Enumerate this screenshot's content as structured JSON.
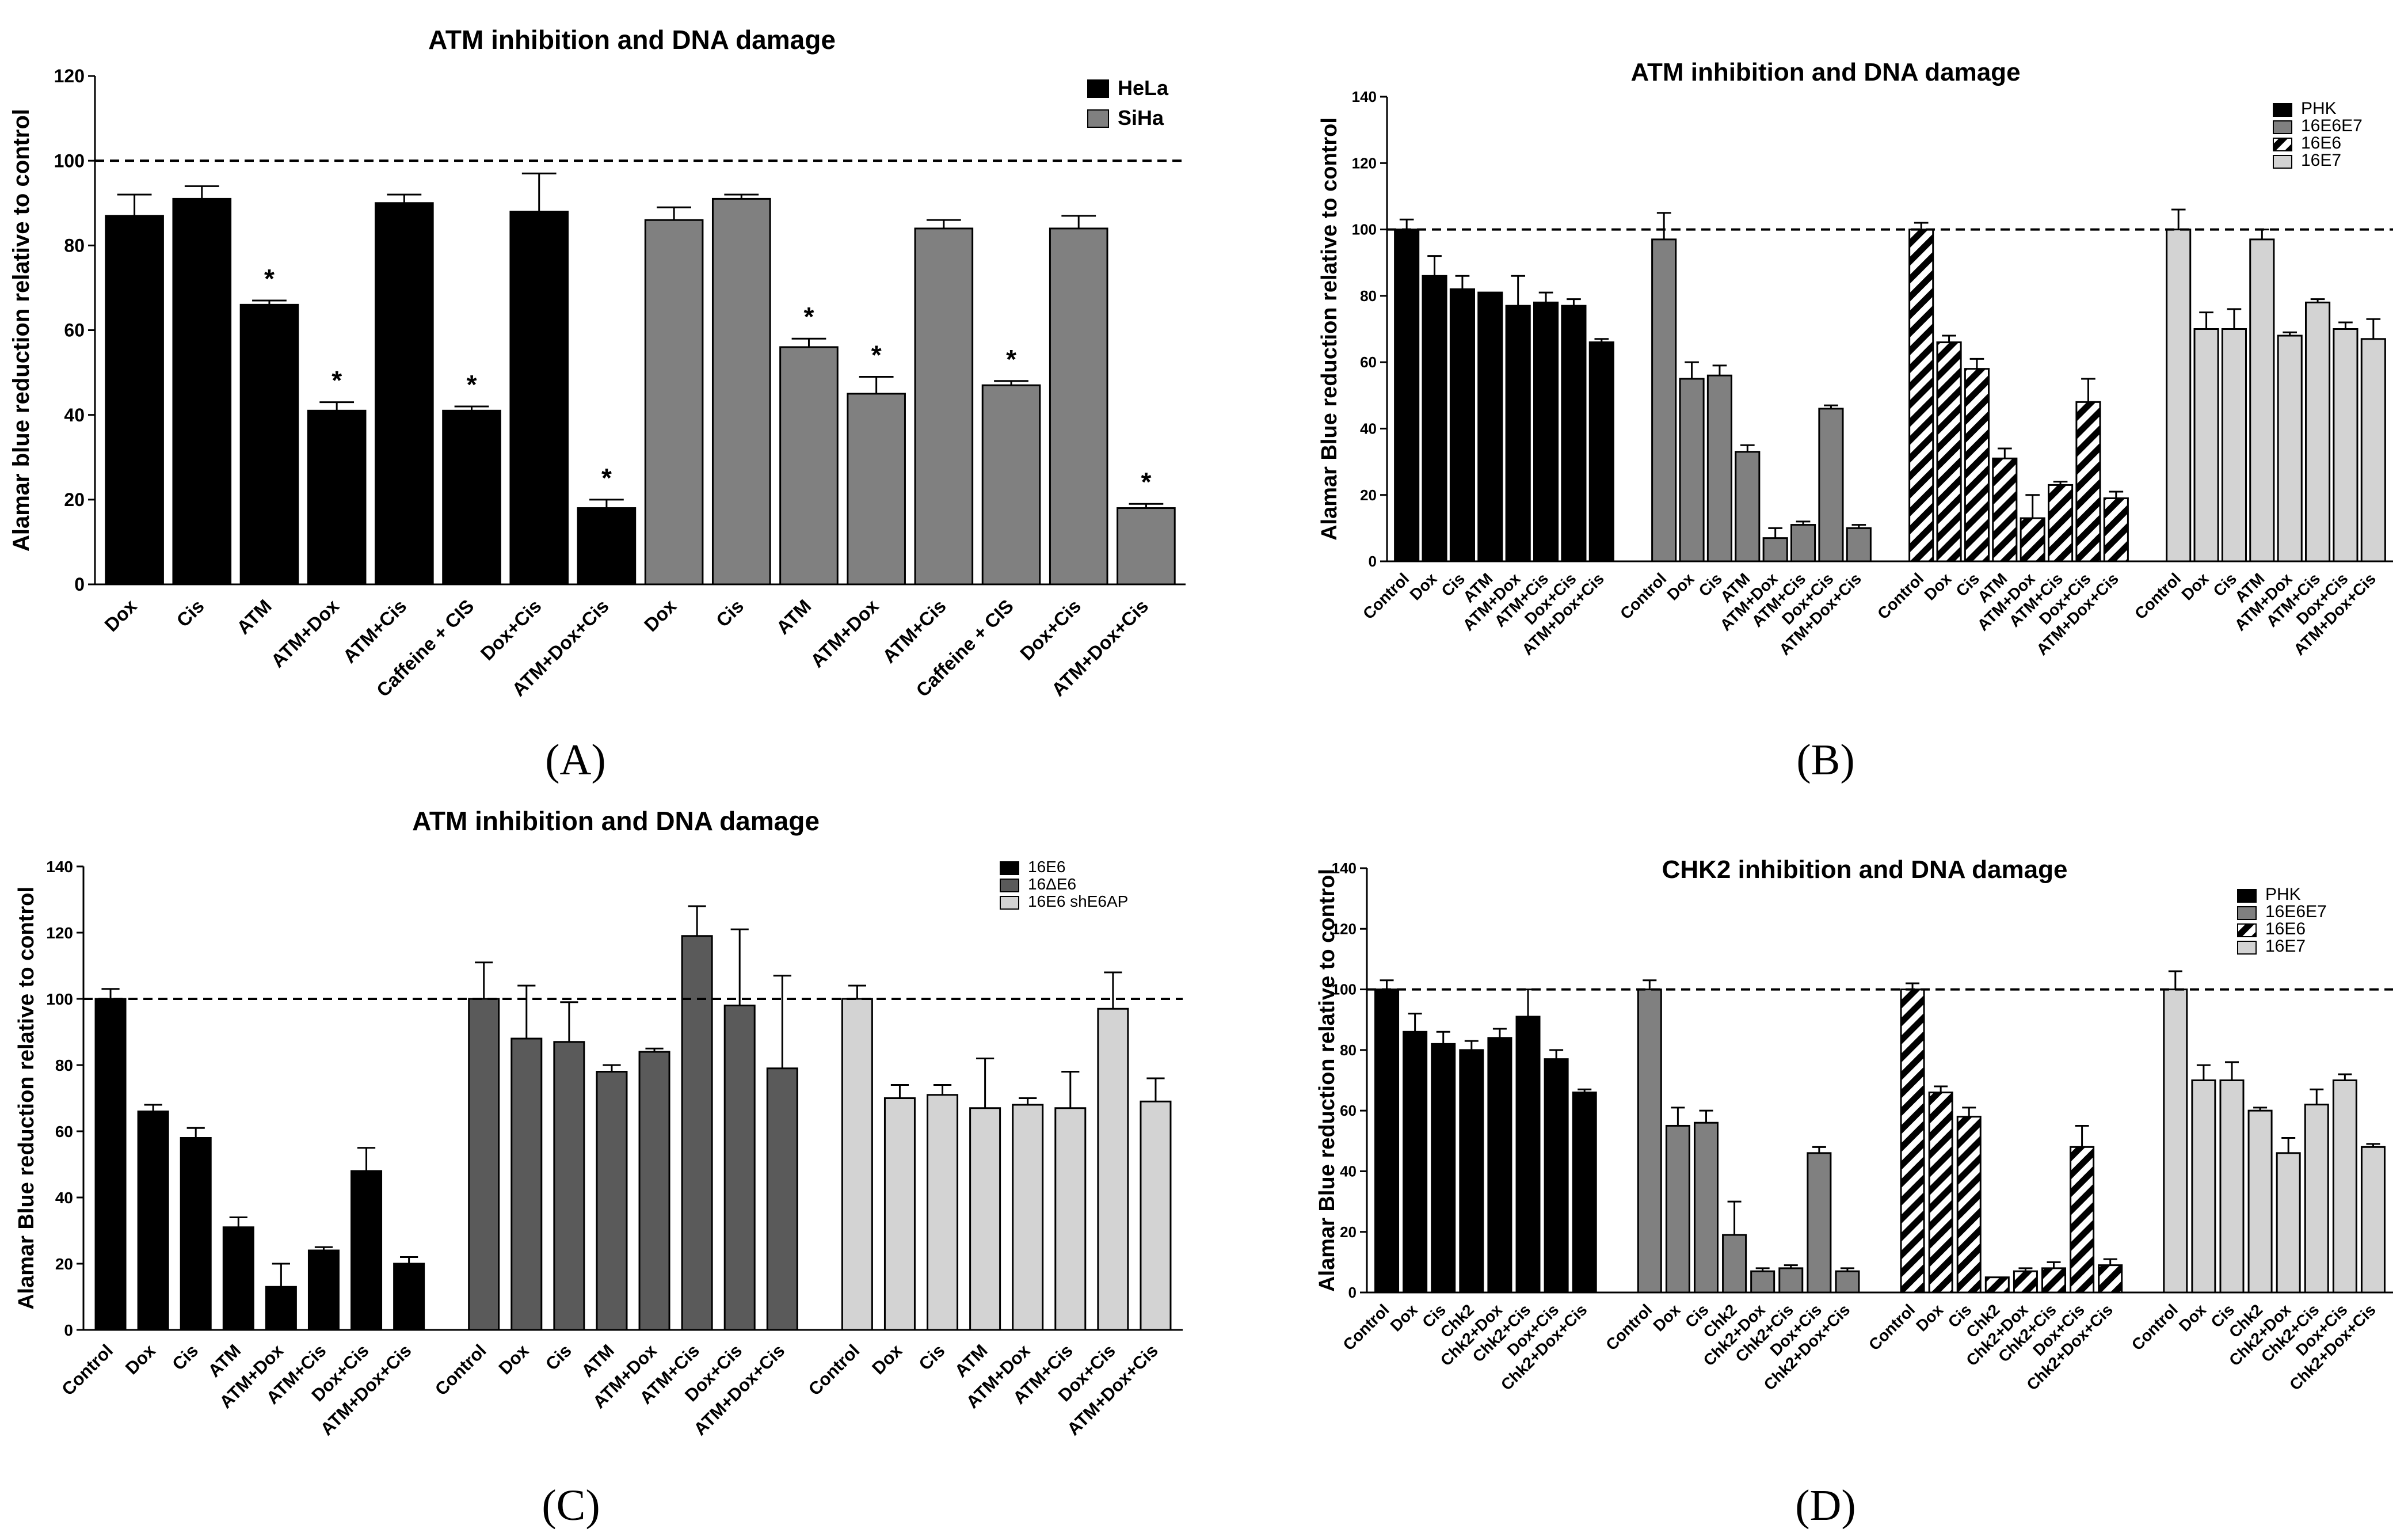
{
  "colors": {
    "black": "#000000",
    "dark_gray": "#808080",
    "mid_gray": "#5a5a5a",
    "light_gray": "#d3d3d3",
    "white": "#ffffff"
  },
  "chart_data": [
    {
      "panel": "(A)",
      "type": "bar",
      "title": "ATM inhibition and DNA damage",
      "ylabel": "Alamar blue reduction relative to control",
      "xlabel": "",
      "ylim": [
        0,
        120
      ],
      "yticks": [
        "0",
        "20",
        "40",
        "60",
        "80",
        "100",
        "120"
      ],
      "reference_line": 100,
      "legend": [
        {
          "label": "HeLa",
          "fill": "black"
        },
        {
          "label": "SiHa",
          "fill": "dark_gray"
        }
      ],
      "groups": [
        {
          "name": "HeLa",
          "fill": "black",
          "categories": [
            "Dox",
            "Cis",
            "ATM",
            "ATM+Dox",
            "ATM+Cis",
            "Caffeine + CIS",
            "Dox+Cis",
            "ATM+Dox+Cis"
          ],
          "values": [
            87,
            91,
            66,
            41,
            90,
            41,
            88,
            18
          ],
          "errors": [
            5,
            3,
            1,
            2,
            2,
            1,
            9,
            2
          ],
          "stars": [
            false,
            false,
            true,
            true,
            false,
            true,
            false,
            true
          ]
        },
        {
          "name": "SiHa",
          "fill": "dark_gray",
          "categories": [
            "Dox",
            "Cis",
            "ATM",
            "ATM+Dox",
            "ATM+Cis",
            "Caffeine + CIS",
            "Dox+Cis",
            "ATM+Dox+Cis"
          ],
          "values": [
            86,
            91,
            56,
            45,
            84,
            47,
            84,
            18
          ],
          "errors": [
            3,
            1,
            2,
            4,
            2,
            1,
            3,
            1
          ],
          "stars": [
            false,
            false,
            true,
            true,
            false,
            true,
            false,
            true
          ]
        }
      ],
      "star_symbol": "*"
    },
    {
      "panel": "(B)",
      "type": "bar",
      "title": "ATM inhibition and DNA damage",
      "ylabel": "Alamar Blue reduction relative to control",
      "xlabel": "",
      "ylim": [
        0,
        140
      ],
      "yticks": [
        "0",
        "20",
        "40",
        "60",
        "80",
        "100",
        "120",
        "140"
      ],
      "reference_line": 100,
      "legend": [
        {
          "label": "PHK",
          "fill": "black"
        },
        {
          "label": "16E6E7",
          "fill": "dark_gray"
        },
        {
          "label": "16E6",
          "fill": "hatch"
        },
        {
          "label": "16E7",
          "fill": "light_gray"
        }
      ],
      "groups": [
        {
          "name": "PHK",
          "fill": "black",
          "categories": [
            "Control",
            "Dox",
            "Cis",
            "ATM",
            "ATM+Dox",
            "ATM+Cis",
            "Dox+Cis",
            "ATM+Dox+Cis"
          ],
          "values": [
            100,
            86,
            82,
            81,
            77,
            78,
            77,
            66
          ],
          "errors": [
            3,
            6,
            4,
            0,
            9,
            3,
            2,
            1
          ]
        },
        {
          "name": "16E6E7",
          "fill": "dark_gray",
          "categories": [
            "Control",
            "Dox",
            "Cis",
            "ATM",
            "ATM+Dox",
            "ATM+Cis",
            "Dox+Cis",
            "ATM+Dox+Cis"
          ],
          "values": [
            97,
            55,
            56,
            33,
            7,
            11,
            46,
            10
          ],
          "errors": [
            8,
            5,
            3,
            2,
            3,
            1,
            1,
            1
          ]
        },
        {
          "name": "16E6",
          "fill": "hatch",
          "categories": [
            "Control",
            "Dox",
            "Cis",
            "ATM",
            "ATM+Dox",
            "ATM+Cis",
            "Dox+Cis",
            "ATM+Dox+Cis"
          ],
          "values": [
            100,
            66,
            58,
            31,
            13,
            23,
            48,
            19
          ],
          "errors": [
            2,
            2,
            3,
            3,
            7,
            1,
            7,
            2
          ]
        },
        {
          "name": "16E7",
          "fill": "light_gray",
          "categories": [
            "Control",
            "Dox",
            "Cis",
            "ATM",
            "ATM+Dox",
            "ATM+Cis",
            "Dox+Cis",
            "ATM+Dox+Cis"
          ],
          "values": [
            100,
            70,
            70,
            97,
            68,
            78,
            70,
            67
          ],
          "errors": [
            6,
            5,
            6,
            3,
            1,
            1,
            2,
            6
          ]
        }
      ]
    },
    {
      "panel": "(C)",
      "type": "bar",
      "title": "ATM inhibition and DNA damage",
      "ylabel": "Alamar Blue reduction relative to control",
      "xlabel": "",
      "ylim": [
        0,
        140
      ],
      "yticks": [
        "0",
        "20",
        "40",
        "60",
        "80",
        "100",
        "120",
        "140"
      ],
      "reference_line": 100,
      "legend": [
        {
          "label": "16E6",
          "fill": "black"
        },
        {
          "label": "16ΔE6",
          "fill": "mid_gray"
        },
        {
          "label": "16E6 shE6AP",
          "fill": "light_gray"
        }
      ],
      "groups": [
        {
          "name": "16E6",
          "fill": "black",
          "categories": [
            "Control",
            "Dox",
            "Cis",
            "ATM",
            "ATM+Dox",
            "ATM+Cis",
            "Dox+Cis",
            "ATM+Dox+Cis"
          ],
          "values": [
            100,
            66,
            58,
            31,
            13,
            24,
            48,
            20
          ],
          "errors": [
            3,
            2,
            3,
            3,
            7,
            1,
            7,
            2
          ]
        },
        {
          "name": "16ΔE6",
          "fill": "mid_gray",
          "categories": [
            "Control",
            "Dox",
            "Cis",
            "ATM",
            "ATM+Dox",
            "ATM+Cis",
            "Dox+Cis",
            "ATM+Dox+Cis"
          ],
          "values": [
            100,
            88,
            87,
            78,
            84,
            119,
            98,
            79
          ],
          "errors": [
            11,
            16,
            12,
            2,
            1,
            9,
            23,
            28
          ]
        },
        {
          "name": "16E6 shE6AP",
          "fill": "light_gray",
          "categories": [
            "Control",
            "Dox",
            "Cis",
            "ATM",
            "ATM+Dox",
            "ATM+Cis",
            "Dox+Cis",
            "ATM+Dox+Cis"
          ],
          "values": [
            100,
            70,
            71,
            67,
            68,
            67,
            97,
            69
          ],
          "errors": [
            4,
            4,
            3,
            15,
            2,
            11,
            11,
            7
          ]
        }
      ]
    },
    {
      "panel": "(D)",
      "type": "bar",
      "title": "CHK2  inhibition and DNA damage",
      "ylabel": "Alamar Blue reduction relative to control",
      "xlabel": "",
      "ylim": [
        0,
        140
      ],
      "yticks": [
        "0",
        "20",
        "40",
        "60",
        "80",
        "100",
        "120",
        "140"
      ],
      "reference_line": 100,
      "legend": [
        {
          "label": "PHK",
          "fill": "black"
        },
        {
          "label": "16E6E7",
          "fill": "dark_gray"
        },
        {
          "label": "16E6",
          "fill": "hatch"
        },
        {
          "label": "16E7",
          "fill": "light_gray"
        }
      ],
      "groups": [
        {
          "name": "PHK",
          "fill": "black",
          "categories": [
            "Control",
            "Dox",
            "Cis",
            "Chk2",
            "Chk2+Dox",
            "Chk2+Cis",
            "Dox+Cis",
            "Chk2+Dox+Cis"
          ],
          "values": [
            100,
            86,
            82,
            80,
            84,
            91,
            77,
            66
          ],
          "errors": [
            3,
            6,
            4,
            3,
            3,
            9,
            3,
            1
          ]
        },
        {
          "name": "16E6E7",
          "fill": "dark_gray",
          "categories": [
            "Control",
            "Dox",
            "Cis",
            "Chk2",
            "Chk2+Dox",
            "Chk2+Cis",
            "Dox+Cis",
            "Chk2+Dox+Cis"
          ],
          "values": [
            100,
            55,
            56,
            19,
            7,
            8,
            46,
            7
          ],
          "errors": [
            3,
            6,
            4,
            11,
            1,
            1,
            2,
            1
          ]
        },
        {
          "name": "16E6",
          "fill": "hatch",
          "categories": [
            "Control",
            "Dox",
            "Cis",
            "Chk2",
            "Chk2+Dox",
            "Chk2+Cis",
            "Dox+Cis",
            "Chk2+Dox+Cis"
          ],
          "values": [
            100,
            66,
            58,
            5,
            7,
            8,
            48,
            9
          ],
          "errors": [
            2,
            2,
            3,
            0,
            1,
            2,
            7,
            2
          ]
        },
        {
          "name": "16E7",
          "fill": "light_gray",
          "categories": [
            "Control",
            "Dox",
            "Cis",
            "Chk2",
            "Chk2+Dox",
            "Chk2+Cis",
            "Dox+Cis",
            "Chk2+Dox+Cis"
          ],
          "values": [
            100,
            70,
            70,
            60,
            46,
            62,
            70,
            48
          ],
          "errors": [
            6,
            5,
            6,
            1,
            5,
            5,
            2,
            1
          ]
        }
      ]
    }
  ]
}
